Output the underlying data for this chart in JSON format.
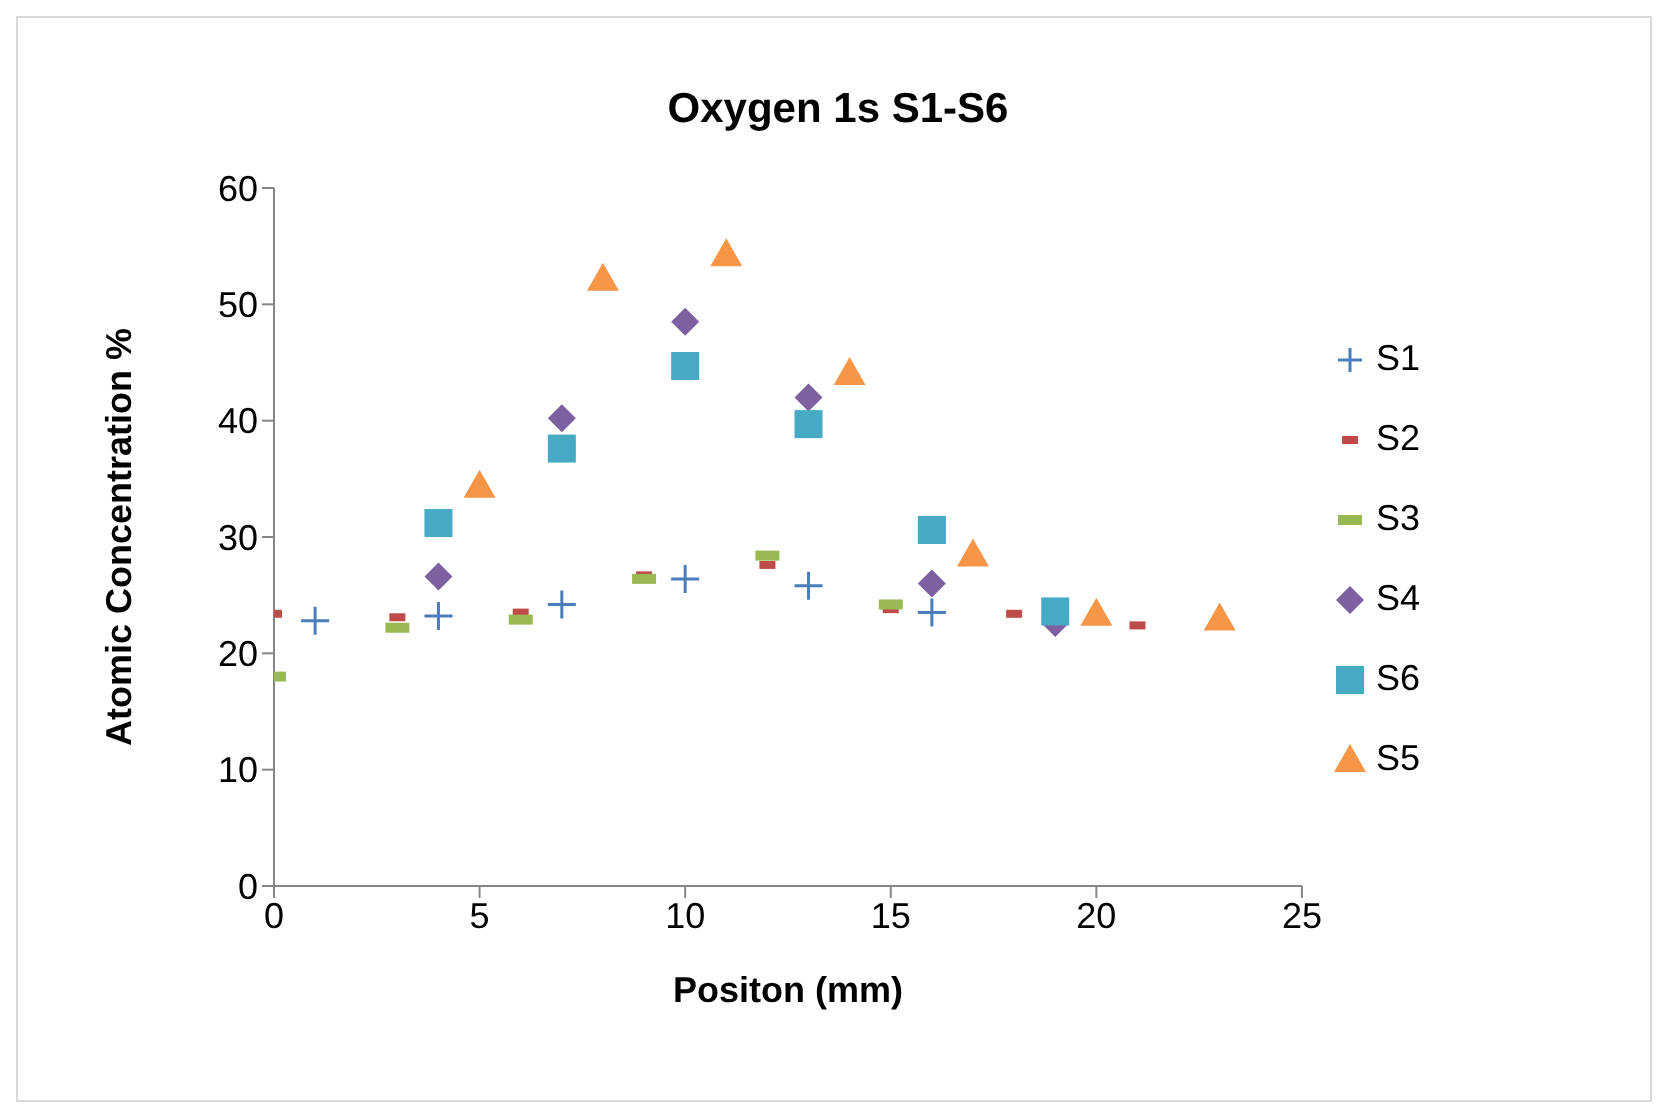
{
  "chart_data": {
    "type": "scatter",
    "title": "Oxygen 1s  S1-S6",
    "xlabel": "Positon (mm)",
    "ylabel": "Atomic Concentration %",
    "xlim": [
      0,
      25
    ],
    "xticks": [
      0,
      5,
      10,
      15,
      20,
      25
    ],
    "ylim": [
      0,
      60
    ],
    "yticks": [
      0,
      10,
      20,
      30,
      40,
      50,
      60
    ],
    "grid": false,
    "legend": "right",
    "series": [
      {
        "name": "S1",
        "color": "#4a7ebb",
        "marker": "cross",
        "x": [
          1,
          4,
          7,
          10,
          13,
          16
        ],
        "values": [
          22.8,
          23.2,
          24.2,
          26.4,
          25.8,
          23.5
        ]
      },
      {
        "name": "S2",
        "color": "#be4b48",
        "x": [
          0,
          3,
          6,
          9,
          12,
          15,
          18,
          21
        ],
        "values": [
          23.4,
          23.1,
          23.5,
          26.7,
          27.6,
          23.8,
          23.4,
          22.4
        ]
      },
      {
        "name": "S3",
        "color": "#98b954",
        "x": [
          0,
          3,
          6,
          9,
          12,
          15
        ],
        "values": [
          18,
          22.2,
          22.9,
          26.4,
          28.4,
          24.2
        ]
      },
      {
        "name": "S4",
        "color": "#7d60a0",
        "marker": "diamond",
        "x": [
          4,
          7,
          10,
          13,
          16,
          19
        ],
        "values": [
          26.6,
          40.2,
          48.5,
          42,
          26,
          22.6
        ]
      },
      {
        "name": "S6",
        "color": "#46aac5",
        "marker": "square",
        "x": [
          4,
          7,
          10,
          13,
          16,
          19
        ],
        "values": [
          31.2,
          37.6,
          44.7,
          39.7,
          30.6,
          23.6
        ]
      },
      {
        "name": "S5",
        "color": "#f79646",
        "marker": "triangle",
        "x": [
          5,
          8,
          11,
          14,
          17,
          20,
          23
        ],
        "values": [
          34.4,
          52.2,
          54.3,
          44.1,
          28.5,
          23.4,
          23
        ]
      }
    ]
  }
}
